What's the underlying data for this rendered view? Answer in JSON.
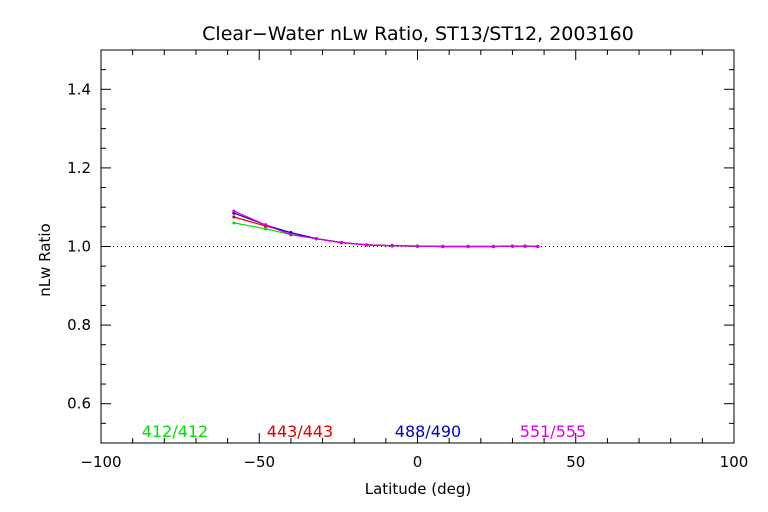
{
  "chart_data": {
    "type": "line",
    "title": "Clear−Water nLw Ratio, ST13/ST12, 2003160",
    "xlabel": "Latitude (deg)",
    "ylabel": "nLw Ratio",
    "xlim": [
      -100,
      100
    ],
    "ylim": [
      0.5,
      1.5
    ],
    "xticks": [
      -100,
      -50,
      0,
      50,
      100
    ],
    "xtick_labels": [
      "−100",
      "−50",
      "0",
      "50",
      "100"
    ],
    "yticks": [
      0.6,
      0.8,
      1.0,
      1.2,
      1.4
    ],
    "ytick_labels": [
      "0.6",
      "0.8",
      "1.0",
      "1.2",
      "1.4"
    ],
    "reference_line": 1.0,
    "grid": false,
    "legend_placement": "bottom, inside plot",
    "series": [
      {
        "name": "412/412",
        "color": "#00e000",
        "x": [
          -58,
          -48,
          -40,
          -32,
          -24,
          -16,
          -8,
          0,
          8,
          16,
          24,
          30,
          34,
          38
        ],
        "y": [
          1.06,
          1.045,
          1.03,
          1.02,
          1.01,
          1.004,
          1.002,
          1.001,
          1.0,
          1.0,
          1.0,
          1.001,
          1.001,
          1.0
        ]
      },
      {
        "name": "443/443",
        "color": "#e00000",
        "x": [
          -58,
          -48,
          -40,
          -32,
          -24,
          -16,
          -8,
          0,
          8,
          16,
          24,
          30,
          34,
          38
        ],
        "y": [
          1.075,
          1.052,
          1.035,
          1.02,
          1.01,
          1.004,
          1.002,
          1.001,
          1.0,
          1.0,
          1.0,
          1.001,
          1.001,
          1.0
        ]
      },
      {
        "name": "488/490",
        "color": "#0000cc",
        "x": [
          -58,
          -48,
          -40,
          -32,
          -24,
          -16,
          -8,
          0,
          8,
          16,
          24,
          30,
          34,
          38
        ],
        "y": [
          1.085,
          1.055,
          1.035,
          1.02,
          1.01,
          1.004,
          1.002,
          1.001,
          1.0,
          1.0,
          1.0,
          1.001,
          1.001,
          1.0
        ]
      },
      {
        "name": "551/555",
        "color": "#e000e0",
        "x": [
          -58,
          -48,
          -40,
          -32,
          -24,
          -16,
          -8,
          0,
          8,
          16,
          24,
          30,
          34,
          38
        ],
        "y": [
          1.09,
          1.055,
          1.03,
          1.02,
          1.01,
          1.004,
          1.002,
          1.001,
          1.0,
          1.0,
          1.0,
          1.001,
          1.001,
          1.0
        ]
      }
    ]
  }
}
